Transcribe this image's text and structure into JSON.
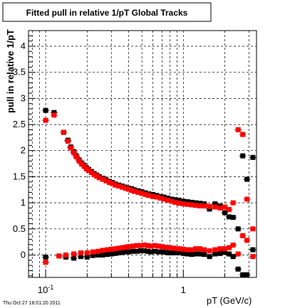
{
  "chart_data": {
    "type": "scatter",
    "title": "Fitted pull in relative 1/pT  Global Tracks",
    "xlabel": "pT (GeV/c)",
    "ylabel": "pull in relative 1/pT",
    "x_scale": "log",
    "xlim": [
      0.075,
      3.4
    ],
    "ylim": [
      -0.43,
      4.3
    ],
    "grid": true,
    "x_major_ticks": [
      {
        "value": 0.1,
        "label": "10^-1"
      },
      {
        "value": 1,
        "label": "1"
      }
    ],
    "y_ticks": [
      {
        "value": 0,
        "label": "0"
      },
      {
        "value": 0.5,
        "label": "0.5"
      },
      {
        "value": 1,
        "label": "1"
      },
      {
        "value": 1.5,
        "label": "1.5"
      },
      {
        "value": 2,
        "label": "2"
      },
      {
        "value": 2.5,
        "label": "2.5"
      },
      {
        "value": 3,
        "label": "3"
      },
      {
        "value": 3.5,
        "label": "3.5"
      },
      {
        "value": 4,
        "label": "4"
      }
    ],
    "timestamp": "Thu Oct 27 18:01:20 2011",
    "series": [
      {
        "color": "#000000",
        "points": [
          [
            0.1,
            2.77
          ],
          [
            0.115,
            2.73
          ],
          [
            0.135,
            2.35
          ],
          [
            0.145,
            2.2
          ],
          [
            0.152,
            2.07
          ],
          [
            0.16,
            1.98
          ],
          [
            0.167,
            1.9
          ],
          [
            0.175,
            1.82
          ],
          [
            0.183,
            1.76
          ],
          [
            0.19,
            1.72
          ],
          [
            0.198,
            1.67
          ],
          [
            0.205,
            1.64
          ],
          [
            0.215,
            1.6
          ],
          [
            0.225,
            1.56
          ],
          [
            0.235,
            1.53
          ],
          [
            0.245,
            1.5
          ],
          [
            0.26,
            1.47
          ],
          [
            0.275,
            1.44
          ],
          [
            0.29,
            1.41
          ],
          [
            0.305,
            1.39
          ],
          [
            0.32,
            1.36
          ],
          [
            0.34,
            1.34
          ],
          [
            0.36,
            1.32
          ],
          [
            0.38,
            1.3
          ],
          [
            0.4,
            1.28
          ],
          [
            0.42,
            1.27
          ],
          [
            0.44,
            1.25
          ],
          [
            0.47,
            1.23
          ],
          [
            0.5,
            1.21
          ],
          [
            0.53,
            1.19
          ],
          [
            0.56,
            1.17
          ],
          [
            0.6,
            1.16
          ],
          [
            0.64,
            1.14
          ],
          [
            0.68,
            1.12
          ],
          [
            0.72,
            1.11
          ],
          [
            0.77,
            1.09
          ],
          [
            0.82,
            1.07
          ],
          [
            0.87,
            1.06
          ],
          [
            0.93,
            1.05
          ],
          [
            1.0,
            1.03
          ],
          [
            1.07,
            1.02
          ],
          [
            1.15,
            1.01
          ],
          [
            1.23,
            1.0
          ],
          [
            1.32,
            0.99
          ],
          [
            1.42,
            0.98
          ],
          [
            1.55,
            0.88
          ],
          [
            1.7,
            0.98
          ],
          [
            1.85,
            0.94
          ],
          [
            2.0,
            0.81
          ],
          [
            2.15,
            0.73
          ],
          [
            2.3,
            0.72
          ],
          [
            2.5,
            0.5
          ],
          [
            2.7,
            1.9
          ],
          [
            2.9,
            1.45
          ],
          [
            3.2,
            1.87
          ],
          [
            0.1,
            -0.04
          ],
          [
            0.125,
            -0.02
          ],
          [
            0.14,
            -0.04
          ],
          [
            0.16,
            -0.06
          ],
          [
            0.18,
            -0.03
          ],
          [
            0.2,
            -0.04
          ],
          [
            0.22,
            -0.01
          ],
          [
            0.24,
            0.0
          ],
          [
            0.26,
            0.0
          ],
          [
            0.28,
            0.01
          ],
          [
            0.3,
            0.02
          ],
          [
            0.32,
            0.03
          ],
          [
            0.34,
            0.04
          ],
          [
            0.36,
            0.05
          ],
          [
            0.38,
            0.06
          ],
          [
            0.4,
            0.06
          ],
          [
            0.43,
            0.07
          ],
          [
            0.46,
            0.07
          ],
          [
            0.49,
            0.08
          ],
          [
            0.52,
            0.08
          ],
          [
            0.55,
            0.07
          ],
          [
            0.58,
            0.06
          ],
          [
            0.62,
            0.07
          ],
          [
            0.66,
            0.06
          ],
          [
            0.7,
            0.06
          ],
          [
            0.75,
            0.05
          ],
          [
            0.8,
            0.04
          ],
          [
            0.85,
            0.04
          ],
          [
            0.9,
            0.04
          ],
          [
            0.95,
            0.05
          ],
          [
            1.0,
            0.03
          ],
          [
            1.07,
            0.02
          ],
          [
            1.15,
            0.01
          ],
          [
            1.23,
            0.02
          ],
          [
            1.32,
            0.02
          ],
          [
            1.42,
            0.01
          ],
          [
            1.55,
            -0.03
          ],
          [
            1.7,
            0.02
          ],
          [
            1.85,
            0.03
          ],
          [
            2.0,
            0.05
          ],
          [
            2.15,
            0.02
          ],
          [
            2.3,
            -0.03
          ],
          [
            2.5,
            -0.27
          ],
          [
            2.7,
            -0.38
          ],
          [
            2.9,
            -0.38
          ],
          [
            3.2,
            0.1
          ]
        ]
      },
      {
        "color": "#ff0000",
        "points": [
          [
            0.1,
            2.58
          ],
          [
            0.115,
            2.68
          ],
          [
            0.135,
            2.35
          ],
          [
            0.145,
            2.18
          ],
          [
            0.152,
            2.05
          ],
          [
            0.16,
            1.96
          ],
          [
            0.167,
            1.88
          ],
          [
            0.175,
            1.8
          ],
          [
            0.183,
            1.74
          ],
          [
            0.19,
            1.7
          ],
          [
            0.198,
            1.65
          ],
          [
            0.205,
            1.62
          ],
          [
            0.215,
            1.58
          ],
          [
            0.225,
            1.54
          ],
          [
            0.235,
            1.51
          ],
          [
            0.245,
            1.48
          ],
          [
            0.26,
            1.45
          ],
          [
            0.275,
            1.42
          ],
          [
            0.29,
            1.39
          ],
          [
            0.305,
            1.37
          ],
          [
            0.32,
            1.34
          ],
          [
            0.34,
            1.32
          ],
          [
            0.36,
            1.3
          ],
          [
            0.38,
            1.28
          ],
          [
            0.4,
            1.26
          ],
          [
            0.42,
            1.24
          ],
          [
            0.44,
            1.22
          ],
          [
            0.47,
            1.2
          ],
          [
            0.5,
            1.18
          ],
          [
            0.53,
            1.16
          ],
          [
            0.56,
            1.14
          ],
          [
            0.6,
            1.12
          ],
          [
            0.64,
            1.11
          ],
          [
            0.68,
            1.09
          ],
          [
            0.72,
            1.07
          ],
          [
            0.77,
            1.05
          ],
          [
            0.82,
            1.03
          ],
          [
            0.87,
            1.01
          ],
          [
            0.93,
            0.99
          ],
          [
            1.0,
            0.98
          ],
          [
            1.07,
            0.97
          ],
          [
            1.15,
            0.96
          ],
          [
            1.23,
            0.95
          ],
          [
            1.32,
            0.94
          ],
          [
            1.42,
            0.94
          ],
          [
            1.55,
            0.93
          ],
          [
            1.7,
            0.92
          ],
          [
            1.85,
            0.9
          ],
          [
            2.0,
            0.92
          ],
          [
            2.15,
            0.87
          ],
          [
            2.3,
            1.0
          ],
          [
            2.5,
            2.4
          ],
          [
            2.7,
            2.31
          ],
          [
            2.9,
            1.07
          ],
          [
            3.2,
            0.5
          ],
          [
            0.1,
            -0.14
          ],
          [
            0.125,
            -0.02
          ],
          [
            0.14,
            0.0
          ],
          [
            0.16,
            0.02
          ],
          [
            0.18,
            0.04
          ],
          [
            0.2,
            0.04
          ],
          [
            0.22,
            0.06
          ],
          [
            0.24,
            0.07
          ],
          [
            0.26,
            0.09
          ],
          [
            0.28,
            0.1
          ],
          [
            0.3,
            0.11
          ],
          [
            0.32,
            0.12
          ],
          [
            0.34,
            0.13
          ],
          [
            0.36,
            0.14
          ],
          [
            0.38,
            0.15
          ],
          [
            0.4,
            0.16
          ],
          [
            0.43,
            0.17
          ],
          [
            0.46,
            0.18
          ],
          [
            0.49,
            0.18
          ],
          [
            0.52,
            0.19
          ],
          [
            0.55,
            0.18
          ],
          [
            0.58,
            0.17
          ],
          [
            0.62,
            0.18
          ],
          [
            0.66,
            0.17
          ],
          [
            0.7,
            0.16
          ],
          [
            0.75,
            0.15
          ],
          [
            0.8,
            0.14
          ],
          [
            0.85,
            0.13
          ],
          [
            0.9,
            0.12
          ],
          [
            0.95,
            0.12
          ],
          [
            1.0,
            0.11
          ],
          [
            1.07,
            0.1
          ],
          [
            1.15,
            0.1
          ],
          [
            1.23,
            0.12
          ],
          [
            1.32,
            0.12
          ],
          [
            1.42,
            0.1
          ],
          [
            1.55,
            0.08
          ],
          [
            1.7,
            0.1
          ],
          [
            1.85,
            0.12
          ],
          [
            2.0,
            0.12
          ],
          [
            2.15,
            0.14
          ],
          [
            2.3,
            0.19
          ],
          [
            2.5,
            0.02
          ],
          [
            2.7,
            0.37
          ],
          [
            2.9,
            0.28
          ],
          [
            3.2,
            -0.03
          ]
        ]
      }
    ]
  }
}
